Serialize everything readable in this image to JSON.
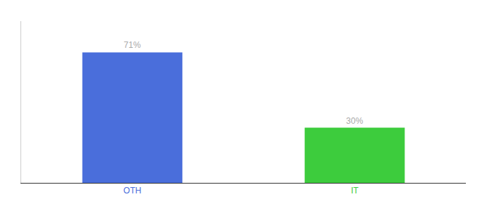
{
  "chart_data": {
    "type": "bar",
    "categories": [
      "OTH",
      "IT"
    ],
    "values": [
      71,
      30
    ],
    "value_labels": [
      "71%",
      "30%"
    ],
    "data_labels": true,
    "colors": [
      "#4a6edb",
      "#3dcc3d"
    ],
    "ylim": [
      0,
      88
    ],
    "grid": false,
    "tick_labels": "x"
  }
}
